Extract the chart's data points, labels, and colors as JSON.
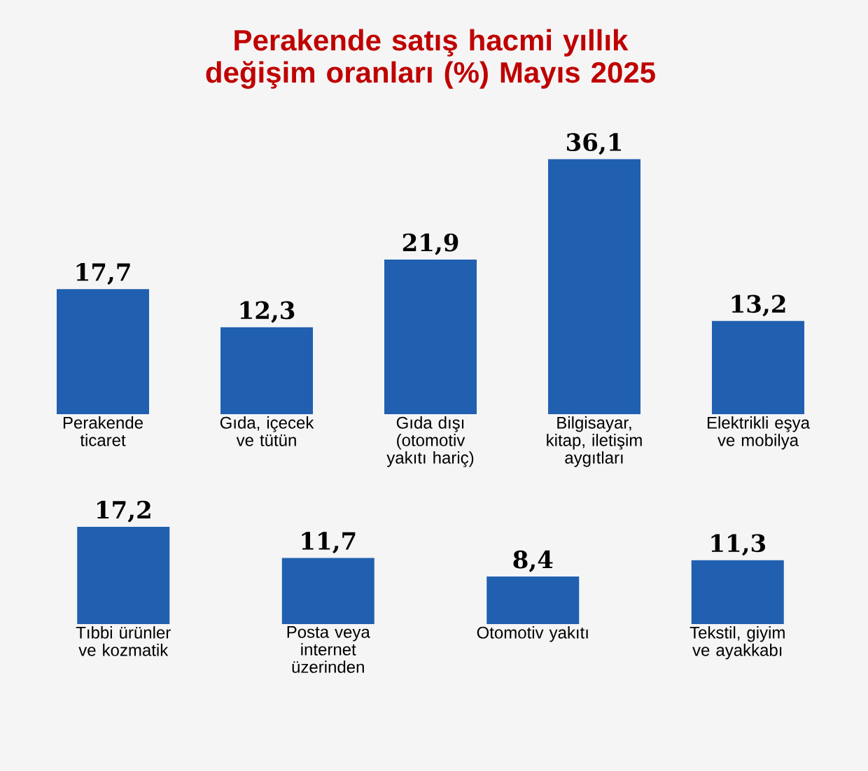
{
  "chart_data": [
    {
      "type": "bar",
      "title": "Perakende satış hacmi yıllık değişim oranları (%) Mayıs 2025",
      "categories": [
        "Perakende ticaret",
        "Gıda, içecek ve tütün",
        "Gıda dışı (otomotiv yakıtı hariç)",
        "Bilgisayar, kitap, iletişim aygıtları",
        "Elektrikli eşya ve mobilya"
      ],
      "values": [
        17.7,
        12.3,
        21.9,
        36.1,
        13.2
      ],
      "value_labels": [
        "17,7",
        "12,3",
        "21,9",
        "36,1",
        "13,2"
      ],
      "color": "#2160b0"
    },
    {
      "type": "bar",
      "categories": [
        "Tıbbi ürünler ve kozmatik",
        "Posta veya internet üzerinden",
        "Otomotiv yakıtı",
        "Tekstil, giyim ve ayakkabı"
      ],
      "values": [
        17.2,
        11.7,
        8.4,
        11.3
      ],
      "value_labels": [
        "17,2",
        "11,7",
        "8,4",
        "11,3"
      ],
      "color": "#2160b0"
    }
  ]
}
